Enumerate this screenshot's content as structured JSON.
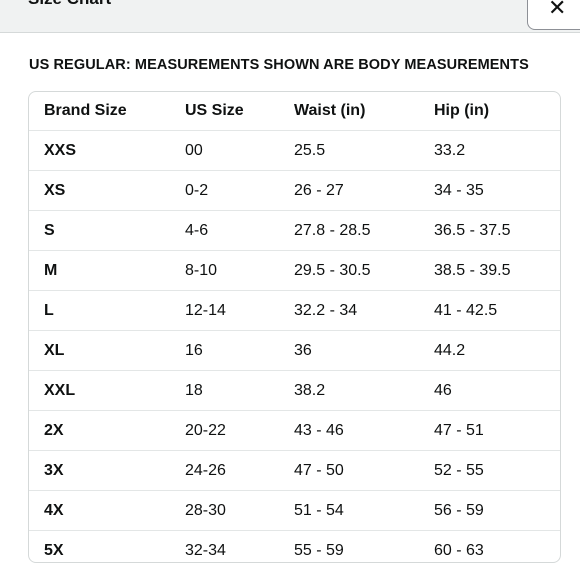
{
  "modal": {
    "title": "Size Chart",
    "close_label": "✕",
    "close_icon": "close-icon"
  },
  "subtitle": "US REGULAR: MEASUREMENTS SHOWN ARE BODY MEASUREMENTS",
  "table": {
    "headers": [
      "Brand Size",
      "US Size",
      "Waist (in)",
      "Hip (in)"
    ],
    "rows": [
      [
        "XXS",
        "00",
        "25.5",
        "33.2"
      ],
      [
        "XS",
        "0-2",
        "26 - 27",
        "34 - 35"
      ],
      [
        "S",
        "4-6",
        "27.8 - 28.5",
        "36.5 - 37.5"
      ],
      [
        "M",
        "8-10",
        "29.5 - 30.5",
        "38.5 - 39.5"
      ],
      [
        "L",
        "12-14",
        "32.2 - 34",
        "41 - 42.5"
      ],
      [
        "XL",
        "16",
        "36",
        "44.2"
      ],
      [
        "XXL",
        "18",
        "38.2",
        "46"
      ],
      [
        "2X",
        "20-22",
        "43 - 46",
        "47 - 51"
      ],
      [
        "3X",
        "24-26",
        "47 - 50",
        "52 - 55"
      ],
      [
        "4X",
        "28-30",
        "51 - 54",
        "56 - 59"
      ],
      [
        "5X",
        "32-34",
        "55 - 59",
        "60 - 63"
      ]
    ]
  },
  "colors": {
    "header_bg": "#f0f2f2",
    "text": "#0f1111",
    "border": "#d5d9d9"
  }
}
